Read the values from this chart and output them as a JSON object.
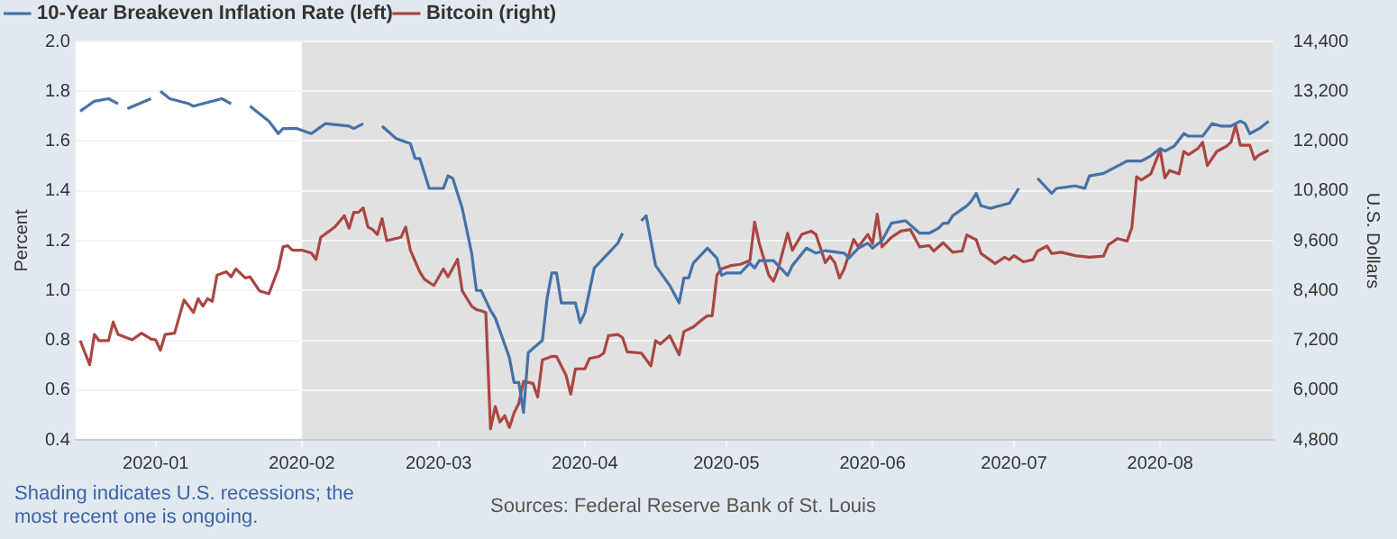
{
  "chart_data": {
    "type": "line",
    "ylabel": "Percent",
    "y2label": "U.S. Dollars",
    "legend": "top left",
    "grid": "y",
    "marker": "none",
    "xlim": [
      "2019-12-15",
      "2020-08-25"
    ],
    "xticks": [
      {
        "value": "2020-01-01",
        "label": "2020-01"
      },
      {
        "value": "2020-02-01",
        "label": "2020-02"
      },
      {
        "value": "2020-03-01",
        "label": "2020-03"
      },
      {
        "value": "2020-04-01",
        "label": "2020-04"
      },
      {
        "value": "2020-05-01",
        "label": "2020-05"
      },
      {
        "value": "2020-06-01",
        "label": "2020-06"
      },
      {
        "value": "2020-07-01",
        "label": "2020-07"
      },
      {
        "value": "2020-08-01",
        "label": "2020-08"
      }
    ],
    "ylim": [
      0.4,
      2.0
    ],
    "yticks": [
      0.4,
      0.6,
      0.8,
      {
        "value": 1,
        "label": "1.0"
      },
      1.2,
      1.4,
      1.6,
      1.8,
      {
        "value": 2,
        "label": "2.0"
      }
    ],
    "y2lim": [
      4800,
      14400
    ],
    "y2ticks": [
      {
        "value": 4800,
        "label": "4,800"
      },
      {
        "value": 6000,
        "label": "6,000"
      },
      {
        "value": 7200,
        "label": "7,200"
      },
      {
        "value": 8400,
        "label": "8,400"
      },
      {
        "value": 9600,
        "label": "9,600"
      },
      {
        "value": 10800,
        "label": "10,800"
      },
      {
        "value": 12000,
        "label": "12,000"
      },
      {
        "value": 13200,
        "label": "13,200"
      },
      {
        "value": 14400,
        "label": "14,400"
      }
    ],
    "bands": [
      {
        "axis": "x",
        "from": "2020-02-01",
        "to": "2020-08-25",
        "color": "#e1e1e1"
      }
    ],
    "annotations": [
      "Shading indicates U.S. recessions; the most recent one is ongoing.",
      "Sources: Federal Reserve Bank of St. Louis"
    ],
    "series": [
      {
        "name": "10-Year Breakeven Inflation Rate (left)",
        "color": "#4572a7",
        "axis": "y",
        "x": [
          "2019-12-16",
          "2019-12-19",
          "2019-12-22",
          "2019-12-24",
          "2019-12-25",
          "2019-12-26",
          "2019-12-31",
          "2020-01-01",
          "2020-01-02",
          "2020-01-04",
          "2020-01-08",
          "2020-01-09",
          "2020-01-13",
          "2020-01-15",
          "2020-01-17",
          "2020-01-19",
          "2020-01-21",
          "2020-01-25",
          "2020-01-27",
          "2020-01-28",
          "2020-01-31",
          "2020-02-03",
          "2020-02-06",
          "2020-02-11",
          "2020-02-12",
          "2020-02-14",
          "2020-02-16",
          "2020-02-18",
          "2020-02-21",
          "2020-02-24",
          "2020-02-25",
          "2020-02-26",
          "2020-02-28",
          "2020-03-02",
          "2020-03-03",
          "2020-03-04",
          "2020-03-06",
          "2020-03-08",
          "2020-03-09",
          "2020-03-10",
          "2020-03-12",
          "2020-03-13",
          "2020-03-16",
          "2020-03-17",
          "2020-03-18",
          "2020-03-19",
          "2020-03-20",
          "2020-03-23",
          "2020-03-24",
          "2020-03-25",
          "2020-03-26",
          "2020-03-27",
          "2020-03-30",
          "2020-03-31",
          "2020-04-01",
          "2020-04-03",
          "2020-04-06",
          "2020-04-08",
          "2020-04-09",
          "2020-04-11",
          "2020-04-13",
          "2020-04-14",
          "2020-04-16",
          "2020-04-19",
          "2020-04-21",
          "2020-04-22",
          "2020-04-23",
          "2020-04-24",
          "2020-04-27",
          "2020-04-29",
          "2020-04-30",
          "2020-05-01",
          "2020-05-04",
          "2020-05-06",
          "2020-05-07",
          "2020-05-08",
          "2020-05-11",
          "2020-05-12",
          "2020-05-14",
          "2020-05-15",
          "2020-05-18",
          "2020-05-20",
          "2020-05-22",
          "2020-05-26",
          "2020-05-27",
          "2020-05-29",
          "2020-05-31",
          "2020-06-01",
          "2020-06-03",
          "2020-06-05",
          "2020-06-08",
          "2020-06-11",
          "2020-06-13",
          "2020-06-15",
          "2020-06-16",
          "2020-06-17",
          "2020-06-18",
          "2020-06-21",
          "2020-06-22",
          "2020-06-23",
          "2020-06-24",
          "2020-06-26",
          "2020-06-28",
          "2020-06-30",
          "2020-07-02",
          "2020-07-04",
          "2020-07-06",
          "2020-07-08",
          "2020-07-09",
          "2020-07-10",
          "2020-07-14",
          "2020-07-16",
          "2020-07-17",
          "2020-07-20",
          "2020-07-22",
          "2020-07-25",
          "2020-07-27",
          "2020-07-28",
          "2020-07-30",
          "2020-08-01",
          "2020-08-02",
          "2020-08-04",
          "2020-08-06",
          "2020-08-07",
          "2020-08-10",
          "2020-08-12",
          "2020-08-14",
          "2020-08-16",
          "2020-08-18",
          "2020-08-19",
          "2020-08-20",
          "2020-08-22",
          "2020-08-24"
        ],
        "values": [
          1.72,
          1.76,
          1.77,
          1.75,
          null,
          1.73,
          1.77,
          null,
          1.8,
          1.77,
          1.75,
          1.74,
          1.76,
          1.77,
          1.75,
          null,
          1.74,
          1.68,
          1.63,
          1.65,
          1.65,
          1.63,
          1.67,
          1.66,
          1.65,
          1.67,
          null,
          1.66,
          1.61,
          1.59,
          1.53,
          1.53,
          1.41,
          1.41,
          1.46,
          1.45,
          1.33,
          1.15,
          1.0,
          1.0,
          0.92,
          0.89,
          0.73,
          0.63,
          0.63,
          0.51,
          0.75,
          0.8,
          0.97,
          1.07,
          1.07,
          0.95,
          0.95,
          0.87,
          0.91,
          1.09,
          1.15,
          1.19,
          1.23,
          null,
          1.28,
          1.3,
          1.1,
          1.02,
          0.95,
          1.05,
          1.05,
          1.11,
          1.17,
          1.13,
          1.06,
          1.07,
          1.07,
          1.11,
          1.09,
          1.12,
          1.12,
          1.1,
          1.06,
          1.1,
          1.17,
          1.15,
          1.16,
          1.15,
          1.13,
          1.17,
          1.19,
          1.17,
          1.2,
          1.27,
          1.28,
          1.23,
          1.23,
          1.25,
          1.27,
          1.27,
          1.3,
          1.34,
          1.36,
          1.39,
          1.34,
          1.33,
          1.34,
          1.35,
          1.41,
          null,
          1.45,
          1.41,
          1.39,
          1.41,
          1.42,
          1.41,
          1.46,
          1.47,
          1.49,
          1.52,
          1.52,
          1.52,
          1.54,
          1.57,
          1.56,
          1.58,
          1.63,
          1.62,
          1.62,
          1.67,
          1.66,
          1.66,
          1.68,
          1.67,
          1.63,
          1.65,
          1.68
        ]
      },
      {
        "name": "Bitcoin (right)",
        "color": "#aa4643",
        "axis": "y2",
        "x": [
          "2019-12-16",
          "2019-12-18",
          "2019-12-19",
          "2019-12-20",
          "2019-12-22",
          "2019-12-23",
          "2019-12-24",
          "2019-12-27",
          "2019-12-29",
          "2019-12-31",
          "2020-01-01",
          "2020-01-02",
          "2020-01-03",
          "2020-01-05",
          "2020-01-07",
          "2020-01-09",
          "2020-01-10",
          "2020-01-11",
          "2020-01-12",
          "2020-01-13",
          "2020-01-14",
          "2020-01-16",
          "2020-01-17",
          "2020-01-18",
          "2020-01-20",
          "2020-01-21",
          "2020-01-23",
          "2020-01-25",
          "2020-01-27",
          "2020-01-28",
          "2020-01-29",
          "2020-01-30",
          "2020-02-01",
          "2020-02-03",
          "2020-02-04",
          "2020-02-05",
          "2020-02-08",
          "2020-02-10",
          "2020-02-11",
          "2020-02-12",
          "2020-02-13",
          "2020-02-14",
          "2020-02-15",
          "2020-02-16",
          "2020-02-17",
          "2020-02-18",
          "2020-02-19",
          "2020-02-22",
          "2020-02-23",
          "2020-02-24",
          "2020-02-26",
          "2020-02-27",
          "2020-02-29",
          "2020-03-02",
          "2020-03-03",
          "2020-03-05",
          "2020-03-06",
          "2020-03-08",
          "2020-03-09",
          "2020-03-10",
          "2020-03-11",
          "2020-03-12",
          "2020-03-13",
          "2020-03-14",
          "2020-03-15",
          "2020-03-16",
          "2020-03-17",
          "2020-03-18",
          "2020-03-19",
          "2020-03-21",
          "2020-03-22",
          "2020-03-23",
          "2020-03-25",
          "2020-03-26",
          "2020-03-28",
          "2020-03-29",
          "2020-03-30",
          "2020-04-01",
          "2020-04-02",
          "2020-04-04",
          "2020-04-05",
          "2020-04-06",
          "2020-04-08",
          "2020-04-09",
          "2020-04-10",
          "2020-04-13",
          "2020-04-15",
          "2020-04-16",
          "2020-04-17",
          "2020-04-19",
          "2020-04-21",
          "2020-04-22",
          "2020-04-24",
          "2020-04-26",
          "2020-04-27",
          "2020-04-28",
          "2020-04-29",
          "2020-04-30",
          "2020-05-02",
          "2020-05-04",
          "2020-05-06",
          "2020-05-07",
          "2020-05-08",
          "2020-05-10",
          "2020-05-11",
          "2020-05-12",
          "2020-05-14",
          "2020-05-15",
          "2020-05-17",
          "2020-05-19",
          "2020-05-20",
          "2020-05-22",
          "2020-05-23",
          "2020-05-24",
          "2020-05-25",
          "2020-05-26",
          "2020-05-28",
          "2020-05-29",
          "2020-05-31",
          "2020-06-01",
          "2020-06-02",
          "2020-06-03",
          "2020-06-05",
          "2020-06-07",
          "2020-06-09",
          "2020-06-11",
          "2020-06-13",
          "2020-06-14",
          "2020-06-16",
          "2020-06-18",
          "2020-06-20",
          "2020-06-21",
          "2020-06-23",
          "2020-06-24",
          "2020-06-27",
          "2020-06-29",
          "2020-06-30",
          "2020-07-01",
          "2020-07-03",
          "2020-07-05",
          "2020-07-06",
          "2020-07-08",
          "2020-07-09",
          "2020-07-11",
          "2020-07-14",
          "2020-07-17",
          "2020-07-20",
          "2020-07-21",
          "2020-07-23",
          "2020-07-25",
          "2020-07-26",
          "2020-07-27",
          "2020-07-28",
          "2020-07-30",
          "2020-08-01",
          "2020-08-02",
          "2020-08-03",
          "2020-08-05",
          "2020-08-06",
          "2020-08-07",
          "2020-08-09",
          "2020-08-10",
          "2020-08-11",
          "2020-08-13",
          "2020-08-15",
          "2020-08-16",
          "2020-08-17",
          "2020-08-18",
          "2020-08-20",
          "2020-08-21",
          "2020-08-22",
          "2020-08-24"
        ],
        "values": [
          7190,
          6610,
          7340,
          7190,
          7190,
          7640,
          7340,
          7210,
          7370,
          7230,
          7210,
          6960,
          7340,
          7370,
          8170,
          7870,
          8200,
          8020,
          8200,
          8140,
          8770,
          8850,
          8730,
          8920,
          8700,
          8730,
          8390,
          8320,
          8920,
          9450,
          9480,
          9370,
          9370,
          9300,
          9150,
          9680,
          9930,
          10200,
          9900,
          10280,
          10280,
          10390,
          9930,
          9870,
          9750,
          10130,
          9600,
          9680,
          9930,
          9370,
          8850,
          8670,
          8520,
          8920,
          8730,
          9150,
          8390,
          8020,
          7940,
          7910,
          7870,
          5070,
          5600,
          5230,
          5380,
          5100,
          5450,
          5680,
          6210,
          6160,
          5830,
          6730,
          6810,
          6810,
          6360,
          5900,
          6510,
          6510,
          6760,
          6810,
          6890,
          7310,
          7340,
          7260,
          6920,
          6890,
          6580,
          7190,
          7110,
          7310,
          6850,
          7410,
          7520,
          7710,
          7790,
          7790,
          8770,
          8920,
          9000,
          9030,
          9120,
          10050,
          9530,
          8770,
          8620,
          8920,
          9780,
          9370,
          9750,
          9830,
          9750,
          9070,
          9220,
          9070,
          8700,
          8920,
          9630,
          9450,
          9750,
          9530,
          10240,
          9450,
          9680,
          9830,
          9870,
          9450,
          9480,
          9350,
          9550,
          9320,
          9350,
          9740,
          9620,
          9290,
          9050,
          9200,
          9140,
          9240,
          9090,
          9140,
          9350,
          9470,
          9290,
          9320,
          9240,
          9200,
          9230,
          9500,
          9650,
          9590,
          9920,
          11140,
          11060,
          11210,
          11780,
          11110,
          11290,
          11210,
          11750,
          11670,
          11820,
          11970,
          11410,
          11750,
          11870,
          11970,
          12380,
          11900,
          11900,
          11560,
          11670,
          11780
        ]
      }
    ]
  }
}
